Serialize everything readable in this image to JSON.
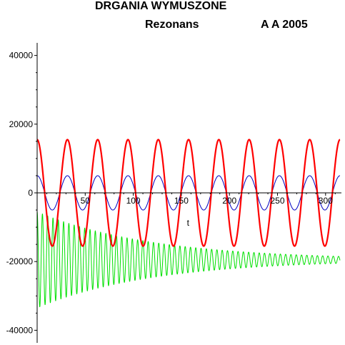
{
  "header": {
    "title": "DRGANIA WYMUSZONE",
    "subtitle": "Rezonans",
    "author": "A A 2005"
  },
  "chart_data": {
    "type": "line",
    "title": "DRGANIA WYMUSZONE",
    "subtitle": "Rezonans",
    "xlabel": "t",
    "ylabel": "",
    "xlim": [
      0,
      315
    ],
    "ylim": [
      -42000,
      42000
    ],
    "x_ticks": [
      50,
      100,
      150,
      200,
      250,
      300
    ],
    "y_ticks": [
      -40000,
      -20000,
      0,
      20000,
      40000
    ],
    "grid": false,
    "series": [
      {
        "color": "#ff0000",
        "form": "amplitude * cos(omega * t)",
        "amplitude": 15500,
        "period": 31.5,
        "offset": 0
      },
      {
        "color": "#0000c0",
        "form": "amplitude * cos(omega * t)",
        "amplitude": 5000,
        "period": 31.5,
        "offset": 0
      },
      {
        "color": "#00e000",
        "form": "offset + amplitude * exp(-t/tau) * cos(omega * t)",
        "offset": -19500,
        "amplitude": 14000,
        "decay_time": 120,
        "period": 5.5,
        "envelope_at_t_0": [
          -5000,
          -34000
        ]
      }
    ]
  }
}
